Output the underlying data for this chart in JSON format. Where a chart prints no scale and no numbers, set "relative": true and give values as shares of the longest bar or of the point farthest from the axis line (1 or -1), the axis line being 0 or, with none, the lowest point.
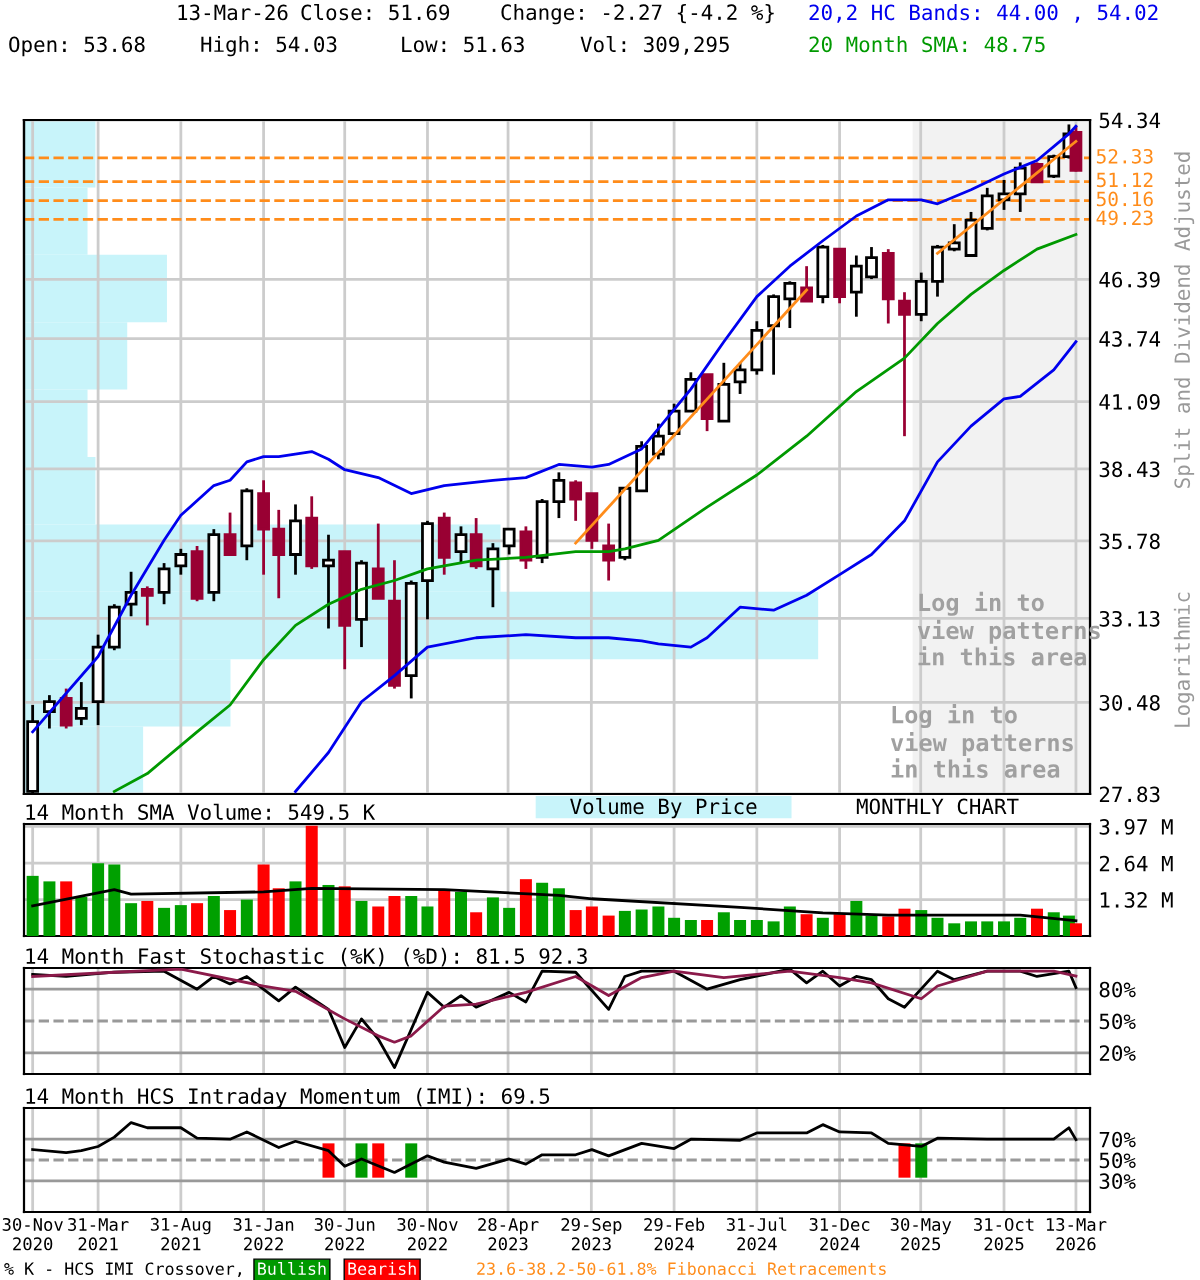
{
  "chart_data": [
    {
      "type": "bar",
      "orientation": "horizontal",
      "relative": true,
      "categories": [
        null,
        null,
        null,
        null,
        null,
        null,
        null,
        null,
        null,
        null
      ],
      "series": [
        {
          "name": "Volume By Price",
          "color": "#c8f4fa",
          "values": [
            0.09,
            0.08,
            0.18,
            0.13,
            0.08,
            0.09,
            0.6,
            1,
            0.26,
            0.15
          ]
        }
      ]
    },
    {
      "type": "candlestick",
      "x": [
        "2020-11-30",
        "2020-12-31",
        "2021-01-31",
        "2021-02-28",
        "2021-03-31",
        "2021-04-30",
        "2021-05-31",
        "2021-06-30",
        "2021-07-31",
        "2021-08-31",
        "2021-09-30",
        "2021-10-31",
        "2021-11-30",
        "2021-12-31",
        "2022-01-31",
        "2022-02-28",
        "2022-03-31",
        "2022-04-30",
        "2022-05-31",
        "2022-06-30",
        "2022-07-31",
        "2022-08-31",
        "2022-09-30",
        "2022-10-31",
        "2022-11-30",
        "2022-12-31",
        "2023-01-31",
        "2023-02-28",
        "2023-03-31",
        "2023-04-30",
        "2023-05-31",
        "2023-06-30",
        "2023-07-31",
        "2023-08-31",
        "2023-09-30",
        "2023-10-31",
        "2023-11-30",
        "2023-12-31",
        "2024-01-31",
        "2024-02-29",
        "2024-03-31",
        "2024-04-30",
        "2024-05-31",
        "2024-06-30",
        "2024-07-31",
        "2024-08-31",
        "2024-09-30",
        "2024-10-31",
        "2024-11-30",
        "2024-12-31",
        "2025-01-31",
        "2025-02-28",
        "2025-03-31",
        "2025-04-30",
        "2025-05-31",
        "2025-06-30",
        "2025-07-31",
        "2025-08-31",
        "2025-09-30",
        "2025-10-31",
        "2025-11-30",
        "2025-12-31",
        "2026-01-31",
        "2026-02-28",
        "2026-03-13"
      ],
      "ohlc": [
        [
          27.9,
          30.4,
          27.85,
          29.9
        ],
        [
          30.2,
          30.7,
          29.7,
          30.5
        ],
        [
          30.6,
          30.9,
          29.7,
          29.8
        ],
        [
          30.0,
          31.1,
          29.8,
          30.3
        ],
        [
          30.5,
          32.6,
          29.8,
          32.2
        ],
        [
          32.2,
          33.6,
          32.1,
          33.5
        ],
        [
          33.6,
          34.7,
          33.2,
          34.0
        ],
        [
          34.1,
          34.2,
          32.9,
          33.9
        ],
        [
          34.0,
          35.0,
          33.6,
          34.8
        ],
        [
          34.9,
          35.5,
          34.6,
          35.3
        ],
        [
          35.4,
          35.6,
          33.7,
          33.8
        ],
        [
          34.0,
          36.2,
          33.7,
          36.0
        ],
        [
          36.0,
          36.8,
          35.3,
          35.3
        ],
        [
          35.6,
          37.7,
          35.1,
          37.6
        ],
        [
          37.5,
          38.0,
          34.6,
          36.2
        ],
        [
          36.2,
          36.9,
          33.8,
          35.3
        ],
        [
          35.3,
          37.1,
          34.6,
          36.5
        ],
        [
          36.6,
          37.4,
          34.8,
          34.9
        ],
        [
          34.9,
          36.0,
          32.8,
          35.1
        ],
        [
          35.4,
          35.4,
          31.5,
          32.9
        ],
        [
          33.1,
          35.1,
          32.2,
          35.0
        ],
        [
          34.8,
          36.4,
          33.8,
          33.8
        ],
        [
          33.7,
          35.1,
          30.9,
          31.0
        ],
        [
          31.3,
          34.4,
          30.6,
          34.3
        ],
        [
          34.4,
          36.5,
          33.1,
          36.4
        ],
        [
          36.6,
          36.8,
          34.6,
          35.2
        ],
        [
          35.4,
          36.3,
          35.0,
          36.0
        ],
        [
          36.0,
          36.6,
          34.8,
          34.9
        ],
        [
          34.8,
          35.7,
          33.5,
          35.5
        ],
        [
          35.6,
          36.2,
          35.3,
          36.2
        ],
        [
          36.1,
          36.3,
          34.8,
          35.1
        ],
        [
          35.2,
          37.3,
          35.0,
          37.2
        ],
        [
          37.2,
          38.3,
          36.6,
          38.0
        ],
        [
          37.9,
          38.0,
          36.5,
          37.3
        ],
        [
          37.5,
          37.5,
          35.5,
          35.8
        ],
        [
          35.6,
          36.4,
          34.4,
          35.1
        ],
        [
          35.2,
          37.7,
          35.1,
          37.7
        ],
        [
          37.6,
          39.5,
          37.6,
          39.3
        ],
        [
          39.0,
          40.2,
          38.8,
          39.7
        ],
        [
          39.8,
          41.0,
          39.7,
          40.7
        ],
        [
          40.7,
          42.3,
          40.7,
          42.0
        ],
        [
          42.2,
          42.2,
          39.9,
          40.4
        ],
        [
          40.3,
          42.7,
          40.3,
          41.8
        ],
        [
          41.9,
          42.7,
          41.4,
          42.4
        ],
        [
          42.4,
          44.5,
          42.2,
          44.1
        ],
        [
          44.3,
          45.7,
          42.2,
          45.6
        ],
        [
          45.5,
          46.3,
          44.2,
          46.2
        ],
        [
          46.0,
          47.0,
          45.4,
          45.4
        ],
        [
          45.6,
          48.0,
          45.3,
          47.9
        ],
        [
          47.8,
          47.8,
          45.3,
          45.6
        ],
        [
          45.8,
          47.5,
          44.7,
          47.0
        ],
        [
          46.5,
          47.9,
          46.4,
          47.4
        ],
        [
          47.6,
          47.8,
          44.4,
          45.5
        ],
        [
          45.4,
          45.8,
          39.7,
          44.8
        ],
        [
          44.8,
          46.7,
          44.5,
          46.3
        ],
        [
          46.3,
          48.0,
          45.6,
          47.9
        ],
        [
          47.8,
          49.0,
          47.7,
          48.1
        ],
        [
          47.5,
          49.6,
          47.5,
          49.2
        ],
        [
          48.8,
          50.8,
          48.7,
          50.4
        ],
        [
          50.2,
          51.2,
          49.7,
          50.5
        ],
        [
          50.5,
          52.1,
          49.6,
          51.8
        ],
        [
          52.0,
          52.1,
          51.1,
          51.1
        ],
        [
          51.4,
          52.5,
          51.3,
          52.4
        ],
        [
          52.4,
          54.1,
          52.3,
          53.6
        ],
        [
          53.68,
          54.03,
          51.63,
          51.69
        ]
      ],
      "colors": [
        "#000000",
        "#000000",
        "#990033",
        "#000000",
        "#000000",
        "#000000",
        "#000000",
        "#990033",
        "#000000",
        "#000000",
        "#990033",
        "#000000",
        "#990033",
        "#000000",
        "#990033",
        "#990033",
        "#000000",
        "#990033",
        "#000000",
        "#990033",
        "#000000",
        "#990033",
        "#990033",
        "#000000",
        "#000000",
        "#990033",
        "#000000",
        "#990033",
        "#000000",
        "#000000",
        "#990033",
        "#000000",
        "#000000",
        "#990033",
        "#990033",
        "#990033",
        "#000000",
        "#000000",
        "#000000",
        "#000000",
        "#000000",
        "#990033",
        "#000000",
        "#000000",
        "#000000",
        "#000000",
        "#000000",
        "#990033",
        "#000000",
        "#990033",
        "#000000",
        "#000000",
        "#990033",
        "#990033",
        "#000000",
        "#000000",
        "#000000",
        "#000000",
        "#000000",
        "#000000",
        "#000000",
        "#990033",
        "#000000",
        "#000000",
        "#990033"
      ],
      "log": true,
      "xlim": [
        "2020-11-14",
        "2026-04-08"
      ],
      "ylim": [
        27.83,
        54.34
      ],
      "yticks": [
        27.83,
        30.48,
        33.13,
        35.78,
        38.43,
        41.09,
        43.74,
        46.39,
        54.34
      ],
      "xticks": [
        {
          "value": "2020-11-30",
          "label": null
        },
        {
          "value": "2021-03-31",
          "label": null
        },
        {
          "value": "2021-08-31",
          "label": null
        },
        {
          "value": "2022-01-31",
          "label": null
        },
        {
          "value": "2022-06-30",
          "label": null
        },
        {
          "value": "2022-11-30",
          "label": null
        },
        {
          "value": "2023-04-28",
          "label": null
        },
        {
          "value": "2023-09-29",
          "label": null
        },
        {
          "value": "2024-02-29",
          "label": null
        },
        {
          "value": "2024-07-31",
          "label": null
        },
        {
          "value": "2024-12-31",
          "label": null
        },
        {
          "value": "2025-05-30",
          "label": null
        },
        {
          "value": "2025-10-31",
          "label": null
        },
        {
          "value": "2026-03-13",
          "label": null
        }
      ],
      "tick_labels": "y",
      "grid": true,
      "series": [
        {
          "type": "line",
          "name": "20,2 HC Bands: 44.00 , 54.02",
          "color": "#0000ee",
          "x": [
            "2020-11-30",
            "2021-03-31",
            "2021-05-31",
            "2021-07-31",
            "2021-08-31",
            "2021-10-31",
            "2021-11-30",
            "2021-12-31",
            "2022-01-31",
            "2022-02-28",
            "2022-04-30",
            "2022-05-31",
            "2022-06-30",
            "2022-08-31",
            "2022-10-31",
            "2022-12-31",
            "2023-03-31",
            "2023-05-31",
            "2023-07-31",
            "2023-09-30",
            "2023-10-31",
            "2023-12-31",
            "2024-01-31",
            "2024-03-31",
            "2024-05-31",
            "2024-07-31",
            "2024-09-30",
            "2024-11-30",
            "2025-01-31",
            "2025-03-31",
            "2025-05-31",
            "2025-06-30",
            "2025-08-31",
            "2025-10-31",
            "2025-12-31",
            "2026-02-28",
            "2026-03-13"
          ],
          "values": [
            29.6,
            31.9,
            33.9,
            35.8,
            36.7,
            37.8,
            38.0,
            38.7,
            38.9,
            38.9,
            39.1,
            38.8,
            38.4,
            38.1,
            37.5,
            37.8,
            38.0,
            38.1,
            38.6,
            38.5,
            38.6,
            39.2,
            40.0,
            41.6,
            43.6,
            45.6,
            47.0,
            48.2,
            49.4,
            50.2,
            50.2,
            50.0,
            50.7,
            51.5,
            52.2,
            53.6,
            54.0
          ]
        },
        {
          "type": "line",
          "color": "#0000ee",
          "x": [
            "2022-03-31",
            "2022-05-31",
            "2022-07-31",
            "2022-09-30",
            "2022-11-30",
            "2023-02-28",
            "2023-05-31",
            "2023-08-31",
            "2023-10-31",
            "2023-12-31",
            "2024-01-31",
            "2024-03-31",
            "2024-04-30",
            "2024-06-30",
            "2024-08-31",
            "2024-10-31",
            "2024-12-31",
            "2025-02-28",
            "2025-04-30",
            "2025-06-30",
            "2025-08-31",
            "2025-10-31",
            "2025-11-30",
            "2026-01-31",
            "2026-03-13"
          ],
          "values": [
            27.9,
            29.0,
            30.5,
            31.3,
            32.2,
            32.5,
            32.6,
            32.5,
            32.5,
            32.4,
            32.3,
            32.2,
            32.5,
            33.5,
            33.4,
            33.9,
            34.6,
            35.3,
            36.5,
            38.7,
            40.1,
            41.2,
            41.3,
            42.4,
            43.6
          ]
        },
        {
          "type": "line",
          "name": "20 Month SMA: 48.75",
          "color": "#009900",
          "x": [
            "2021-04-30",
            "2021-06-30",
            "2021-09-30",
            "2021-11-30",
            "2022-01-31",
            "2022-03-31",
            "2022-05-31",
            "2022-07-31",
            "2022-09-30",
            "2022-11-30",
            "2023-02-28",
            "2023-05-31",
            "2023-08-31",
            "2023-10-31",
            "2023-11-30",
            "2024-01-31",
            "2024-04-30",
            "2024-07-31",
            "2024-10-31",
            "2025-01-31",
            "2025-04-30",
            "2025-06-30",
            "2025-08-31",
            "2025-10-31",
            "2025-12-31",
            "2026-03-13"
          ],
          "values": [
            27.9,
            28.4,
            29.6,
            30.4,
            31.8,
            32.9,
            33.6,
            34.1,
            34.4,
            34.8,
            35.1,
            35.2,
            35.4,
            35.4,
            35.5,
            35.8,
            37.0,
            38.2,
            39.7,
            41.5,
            42.9,
            44.4,
            45.7,
            46.8,
            47.8,
            48.5
          ]
        },
        {
          "type": "line",
          "color": "#ff8c1a",
          "x": [
            "2023-08-31",
            "2024-10-31"
          ],
          "values": [
            35.7,
            45.9
          ]
        },
        {
          "type": "line",
          "color": "#ff8c1a",
          "x": [
            "2025-06-30",
            "2026-03-13"
          ],
          "values": [
            47.6,
            53.2
          ]
        }
      ],
      "ref_lines": [
        {
          "axis": "y",
          "value": 52.33,
          "label": "52.33",
          "color": "#ff8c1a",
          "line_style": "dashed"
        },
        {
          "axis": "y",
          "value": 51.12,
          "label": "51.12",
          "color": "#ff8c1a",
          "line_style": "dashed"
        },
        {
          "axis": "y",
          "value": 50.16,
          "label": "50.16",
          "color": "#ff8c1a",
          "line_style": "dashed"
        },
        {
          "axis": "y",
          "value": 49.23,
          "label": "49.23",
          "color": "#ff8c1a",
          "line_style": "dashed"
        }
      ],
      "bands": [
        {
          "axis": "x",
          "from": "2025-05-15",
          "to": "2026-04-08",
          "label": "Log in to\nview patterns\nin this area",
          "color": "#f2f2f2"
        }
      ],
      "annotations": [
        "13-Mar-26",
        "Close: 51.69",
        "Change: -2.27 {-4.2 %}",
        "Open: 53.68",
        "High: 54.03",
        "Low: 51.63",
        "Vol: 309,295",
        "Split and Dividend Adjusted",
        "Logarithmic",
        "Log in to\nview patterns\nin this area",
        "MONTHLY CHART",
        "23.6-38.2-50-61.8% Fibonacci Retracements"
      ]
    },
    {
      "type": "bar",
      "title": "14 Month SMA Volume: 549.5 K",
      "x": [
        "2020-11-30",
        "2020-12-31",
        "2021-01-31",
        "2021-02-28",
        "2021-03-31",
        "2021-04-30",
        "2021-05-31",
        "2021-06-30",
        "2021-07-31",
        "2021-08-31",
        "2021-09-30",
        "2021-10-31",
        "2021-11-30",
        "2021-12-31",
        "2022-01-31",
        "2022-02-28",
        "2022-03-31",
        "2022-04-30",
        "2022-05-31",
        "2022-06-30",
        "2022-07-31",
        "2022-08-31",
        "2022-09-30",
        "2022-10-31",
        "2022-11-30",
        "2022-12-31",
        "2023-01-31",
        "2023-02-28",
        "2023-03-31",
        "2023-04-30",
        "2023-05-31",
        "2023-06-30",
        "2023-07-31",
        "2023-08-31",
        "2023-09-30",
        "2023-10-31",
        "2023-11-30",
        "2023-12-31",
        "2024-01-31",
        "2024-02-29",
        "2024-03-31",
        "2024-04-30",
        "2024-05-31",
        "2024-06-30",
        "2024-07-31",
        "2024-08-31",
        "2024-09-30",
        "2024-10-31",
        "2024-11-30",
        "2024-12-31",
        "2025-01-31",
        "2025-02-28",
        "2025-03-31",
        "2025-04-30",
        "2025-05-31",
        "2025-06-30",
        "2025-07-31",
        "2025-08-31",
        "2025-09-30",
        "2025-10-31",
        "2025-11-30",
        "2025-12-31",
        "2026-01-31",
        "2026-02-28",
        "2026-03-13"
      ],
      "values": [
        2.18,
        1.98,
        1.98,
        1.42,
        2.64,
        2.59,
        1.19,
        1.27,
        1.02,
        1.12,
        1.19,
        1.45,
        0.94,
        1.32,
        2.59,
        1.73,
        1.98,
        4.0,
        1.85,
        1.8,
        1.27,
        1.07,
        1.45,
        1.45,
        1.07,
        1.7,
        1.6,
        0.86,
        1.4,
        1.02,
        2.06,
        1.93,
        1.73,
        0.94,
        1.07,
        0.74,
        0.91,
        0.96,
        1.07,
        0.66,
        0.58,
        0.58,
        0.86,
        0.58,
        0.58,
        0.53,
        1.07,
        0.79,
        0.66,
        0.79,
        1.27,
        0.74,
        0.71,
        0.99,
        0.94,
        0.66,
        0.46,
        0.53,
        0.53,
        0.53,
        0.66,
        0.99,
        0.86,
        0.74,
        0.46
      ],
      "colors": [
        "#00a000",
        "#00a000",
        "#ff0000",
        "#00a000",
        "#00a000",
        "#00a000",
        "#00a000",
        "#ff0000",
        "#00a000",
        "#00a000",
        "#ff0000",
        "#00a000",
        "#ff0000",
        "#00a000",
        "#ff0000",
        "#ff0000",
        "#00a000",
        "#ff0000",
        "#00a000",
        "#ff0000",
        "#00a000",
        "#ff0000",
        "#ff0000",
        "#00a000",
        "#00a000",
        "#ff0000",
        "#00a000",
        "#ff0000",
        "#00a000",
        "#00a000",
        "#ff0000",
        "#00a000",
        "#00a000",
        "#ff0000",
        "#ff0000",
        "#ff0000",
        "#00a000",
        "#00a000",
        "#00a000",
        "#00a000",
        "#00a000",
        "#ff0000",
        "#00a000",
        "#00a000",
        "#00a000",
        "#00a000",
        "#00a000",
        "#ff0000",
        "#00a000",
        "#ff0000",
        "#00a000",
        "#00a000",
        "#ff0000",
        "#ff0000",
        "#00a000",
        "#00a000",
        "#00a000",
        "#00a000",
        "#00a000",
        "#00a000",
        "#00a000",
        "#ff0000",
        "#00a000",
        "#00a000",
        "#ff0000"
      ],
      "xlim": [
        "2020-11-14",
        "2026-04-08"
      ],
      "ylim": [
        0,
        4.06
      ],
      "yticks": [
        {
          "value": 1.32,
          "label": "1.32 M"
        },
        {
          "value": 2.64,
          "label": "2.64 M"
        },
        {
          "value": 3.97,
          "label": "3.97 M"
        }
      ],
      "xticks": [
        {
          "value": "2020-11-30",
          "label": null
        },
        {
          "value": "2021-03-31",
          "label": null
        },
        {
          "value": "2021-08-31",
          "label": null
        },
        {
          "value": "2022-01-31",
          "label": null
        },
        {
          "value": "2022-06-30",
          "label": null
        },
        {
          "value": "2022-11-30",
          "label": null
        },
        {
          "value": "2023-04-28",
          "label": null
        },
        {
          "value": "2023-09-29",
          "label": null
        },
        {
          "value": "2024-02-29",
          "label": null
        },
        {
          "value": "2024-07-31",
          "label": null
        },
        {
          "value": "2024-12-31",
          "label": null
        },
        {
          "value": "2025-05-30",
          "label": null
        },
        {
          "value": "2025-10-31",
          "label": null
        },
        {
          "value": "2026-03-13",
          "label": null
        }
      ],
      "tick_labels": "y",
      "grid": true,
      "series": [
        {
          "type": "line",
          "color": "#000000",
          "x": [
            "2020-11-30",
            "2021-04-30",
            "2021-05-31",
            "2022-01-31",
            "2022-04-30",
            "2022-12-31",
            "2023-07-31",
            "2023-09-30",
            "2024-06-30",
            "2024-11-30",
            "2025-03-31",
            "2025-11-30",
            "2026-03-13"
          ],
          "values": [
            1.09,
            1.68,
            1.52,
            1.6,
            1.73,
            1.68,
            1.47,
            1.35,
            1.04,
            0.84,
            0.76,
            0.76,
            0.55
          ]
        }
      ]
    },
    {
      "type": "line",
      "title": "14 Month Fast Stochastic (%K) (%D): 81.5 92.3",
      "xlim": [
        "2020-11-14",
        "2026-04-08"
      ],
      "ylim": [
        0,
        100
      ],
      "yticks": [
        {
          "value": 20,
          "label": "20%"
        },
        {
          "value": 50,
          "label": "50%"
        },
        {
          "value": 80,
          "label": "80%"
        }
      ],
      "xticks": [
        {
          "value": "2020-11-30",
          "label": null
        },
        {
          "value": "2021-03-31",
          "label": null
        },
        {
          "value": "2021-08-31",
          "label": null
        },
        {
          "value": "2022-01-31",
          "label": null
        },
        {
          "value": "2022-06-30",
          "label": null
        },
        {
          "value": "2022-11-30",
          "label": null
        },
        {
          "value": "2023-04-28",
          "label": null
        },
        {
          "value": "2023-09-29",
          "label": null
        },
        {
          "value": "2024-02-29",
          "label": null
        },
        {
          "value": "2024-07-31",
          "label": null
        },
        {
          "value": "2024-12-31",
          "label": null
        },
        {
          "value": "2025-05-30",
          "label": null
        },
        {
          "value": "2025-10-31",
          "label": null
        },
        {
          "value": "2026-03-13",
          "label": null
        }
      ],
      "tick_labels": "y",
      "grid": "x",
      "ref_lines": [
        {
          "axis": "y",
          "value": 80,
          "color": "#999999",
          "line_style": "solid"
        },
        {
          "axis": "y",
          "value": 50,
          "color": "#999999",
          "line_style": "dashed"
        },
        {
          "axis": "y",
          "value": 20,
          "color": "#999999",
          "line_style": "solid"
        }
      ],
      "series": [
        {
          "color": "#000000",
          "x": [
            "2020-11-30",
            "2021-01-31",
            "2021-04-30",
            "2021-07-31",
            "2021-09-30",
            "2021-10-31",
            "2021-11-30",
            "2021-12-31",
            "2022-02-28",
            "2022-03-31",
            "2022-05-31",
            "2022-06-30",
            "2022-07-31",
            "2022-08-31",
            "2022-09-30",
            "2022-11-30",
            "2022-12-31",
            "2023-01-31",
            "2023-02-28",
            "2023-04-30",
            "2023-05-31",
            "2023-06-30",
            "2023-08-31",
            "2023-10-31",
            "2023-11-30",
            "2023-12-31",
            "2024-02-29",
            "2024-04-30",
            "2024-06-30",
            "2024-09-30",
            "2024-10-31",
            "2024-11-30",
            "2024-12-31",
            "2025-01-31",
            "2025-02-28",
            "2025-03-31",
            "2025-04-30",
            "2025-06-30",
            "2025-07-31",
            "2025-09-30",
            "2025-11-30",
            "2025-12-31",
            "2026-02-28",
            "2026-03-13"
          ],
          "values": [
            94,
            92,
            96,
            97,
            80,
            92,
            85,
            92,
            69,
            82,
            61,
            25,
            52,
            33,
            6,
            77,
            63,
            74,
            63,
            77,
            68,
            97,
            96,
            61,
            92,
            97,
            97,
            80,
            89,
            99,
            86,
            97,
            83,
            92,
            89,
            71,
            63,
            97,
            89,
            97,
            97,
            92,
            97,
            81.5
          ]
        },
        {
          "color": "#8b1a4a",
          "x": [
            "2020-11-30",
            "2021-04-30",
            "2021-08-31",
            "2022-01-31",
            "2022-03-31",
            "2022-06-30",
            "2022-08-31",
            "2022-09-30",
            "2022-10-31",
            "2022-12-31",
            "2023-02-28",
            "2023-05-31",
            "2023-08-31",
            "2023-10-31",
            "2023-12-31",
            "2024-02-29",
            "2024-05-31",
            "2024-09-30",
            "2024-12-31",
            "2025-02-28",
            "2025-05-31",
            "2025-06-30",
            "2025-09-30",
            "2026-01-31",
            "2026-03-13"
          ],
          "values": [
            92,
            96,
            99,
            83,
            78,
            52,
            36,
            30,
            36,
            64,
            66,
            77,
            92,
            74,
            91,
            97,
            91,
            97,
            91,
            86,
            71,
            83,
            97,
            97,
            92.3
          ]
        }
      ]
    },
    {
      "type": "line",
      "title": "14 Month HCS Intraday Momentum (IMI): 69.5",
      "xlim": [
        "2020-11-14",
        "2026-04-08"
      ],
      "ylim": [
        0,
        100
      ],
      "yticks": [
        {
          "value": 30,
          "label": "30%"
        },
        {
          "value": 50,
          "label": "50%"
        },
        {
          "value": 70,
          "label": "70%"
        }
      ],
      "xticks": [
        {
          "value": "2020-11-30",
          "label": "30-Nov\n2020"
        },
        {
          "value": "2021-03-31",
          "label": "31-Mar\n2021"
        },
        {
          "value": "2021-08-31",
          "label": "31-Aug\n2021"
        },
        {
          "value": "2022-01-31",
          "label": "31-Jan\n2022"
        },
        {
          "value": "2022-06-30",
          "label": "30-Jun\n2022"
        },
        {
          "value": "2022-11-30",
          "label": "30-Nov\n2022"
        },
        {
          "value": "2023-04-28",
          "label": "28-Apr\n2023"
        },
        {
          "value": "2023-09-29",
          "label": "29-Sep\n2023"
        },
        {
          "value": "2024-02-29",
          "label": "29-Feb\n2024"
        },
        {
          "value": "2024-07-31",
          "label": "31-Jul\n2024"
        },
        {
          "value": "2024-12-31",
          "label": "31-Dec\n2024"
        },
        {
          "value": "2025-05-30",
          "label": "30-May\n2025"
        },
        {
          "value": "2025-10-31",
          "label": "31-Oct\n2025"
        },
        {
          "value": "2026-03-13",
          "label": "13-Mar\n2026"
        }
      ],
      "grid": "x",
      "legend": "bottom",
      "legend_title": "% K - HCS IMI Crossover,",
      "ref_lines": [
        {
          "axis": "y",
          "value": 70,
          "color": "#999999",
          "line_style": "solid"
        },
        {
          "axis": "y",
          "value": 50,
          "color": "#999999",
          "line_style": "dashed"
        },
        {
          "axis": "y",
          "value": 30,
          "color": "#999999",
          "line_style": "solid"
        }
      ],
      "series": [
        {
          "type": "line",
          "color": "#000000",
          "x": [
            "2020-11-30",
            "2021-01-31",
            "2021-02-28",
            "2021-03-31",
            "2021-04-30",
            "2021-05-31",
            "2021-06-30",
            "2021-08-31",
            "2021-09-30",
            "2021-11-30",
            "2021-12-31",
            "2022-02-28",
            "2022-03-31",
            "2022-05-31",
            "2022-06-30",
            "2022-07-31",
            "2022-09-30",
            "2022-11-30",
            "2022-12-31",
            "2023-02-28",
            "2023-04-30",
            "2023-05-31",
            "2023-06-30",
            "2023-08-31",
            "2023-09-30",
            "2023-10-31",
            "2023-12-31",
            "2024-02-29",
            "2024-03-31",
            "2024-06-30",
            "2024-07-31",
            "2024-10-31",
            "2024-11-30",
            "2024-12-31",
            "2025-02-28",
            "2025-03-31",
            "2025-05-31",
            "2025-06-30",
            "2025-09-30",
            "2026-01-31",
            "2026-02-28",
            "2026-03-13"
          ],
          "values": [
            60,
            57,
            59,
            63,
            72,
            86,
            81,
            81,
            71,
            70,
            77,
            62,
            68,
            59,
            44,
            51,
            38,
            54,
            48,
            42,
            51,
            46,
            55,
            55,
            60,
            54,
            66,
            61,
            70,
            69,
            76,
            76,
            84,
            77,
            76,
            66,
            63,
            71,
            70,
            70,
            81,
            69.5
          ]
        },
        {
          "type": "bar",
          "name": "Bullish",
          "color": "#009900",
          "x": [
            "2022-07-31",
            "2022-10-31",
            "2025-05-31"
          ],
          "base": [
            33,
            33,
            33
          ],
          "values": [
            33,
            33,
            33
          ]
        },
        {
          "type": "bar",
          "name": "Bearish",
          "color": "#ff0000",
          "x": [
            "2022-05-31",
            "2022-08-31",
            "2025-04-30"
          ],
          "base": [
            33,
            33,
            33
          ],
          "values": [
            33,
            33,
            33
          ]
        }
      ]
    }
  ]
}
